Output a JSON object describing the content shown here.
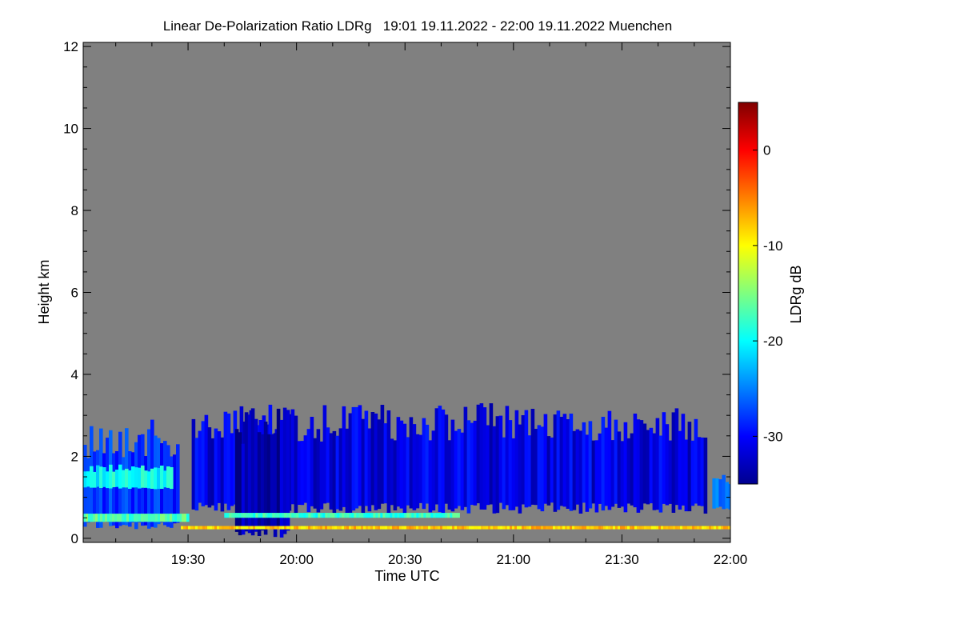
{
  "chart_data": {
    "type": "heatmap",
    "title": "Linear De-Polarization Ratio LDRg   19:01 19.11.2022 - 22:00 19.11.2022 Muenchen",
    "xlabel": "Time UTC",
    "ylabel": "Height km",
    "x_range_minutes": [
      1141,
      1320
    ],
    "y_range_km": [
      -0.1,
      12.1
    ],
    "x_ticks": [
      {
        "minutes": 1170,
        "label": "19:30"
      },
      {
        "minutes": 1200,
        "label": "20:00"
      },
      {
        "minutes": 1230,
        "label": "20:30"
      },
      {
        "minutes": 1260,
        "label": "21:00"
      },
      {
        "minutes": 1290,
        "label": "21:30"
      },
      {
        "minutes": 1320,
        "label": "22:00"
      }
    ],
    "y_ticks": [
      {
        "value": 0,
        "label": "0"
      },
      {
        "value": 2,
        "label": "2"
      },
      {
        "value": 4,
        "label": "4"
      },
      {
        "value": 6,
        "label": "6"
      },
      {
        "value": 8,
        "label": "8"
      },
      {
        "value": 10,
        "label": "10"
      },
      {
        "value": 12,
        "label": "12"
      }
    ],
    "colorbar": {
      "label": "LDRg dB",
      "range": [
        -35,
        5
      ],
      "ticks": [
        {
          "value": 0,
          "label": "0"
        },
        {
          "value": -10,
          "label": "-10"
        },
        {
          "value": -20,
          "label": "-20"
        },
        {
          "value": -30,
          "label": "-30"
        }
      ],
      "colormap": "jet"
    },
    "no_data_color": "#808080",
    "features": [
      {
        "name": "low-level cloud/aerosol layer",
        "t_start": 1141,
        "t_end": 1167,
        "h_min_km": 0.2,
        "h_max_km": 2.9,
        "ldr_db": -28
      },
      {
        "name": "depolarizing layer (cyan)",
        "t_start": 1141,
        "t_end": 1165,
        "h_min_km": 1.2,
        "h_max_km": 1.8,
        "ldr_db": -20
      },
      {
        "name": "bright near-surface band",
        "t_start": 1141,
        "t_end": 1170,
        "h_min_km": 0.4,
        "h_max_km": 0.6,
        "ldr_db": -17
      },
      {
        "name": "ice virga streaks",
        "t_start": 1171,
        "t_end": 1313,
        "h_min_km": 0.6,
        "h_max_km": 3.3,
        "ldr_db": -31
      },
      {
        "name": "dense precipitation column",
        "t_start": 1183,
        "t_end": 1198,
        "h_min_km": 0.0,
        "h_max_km": 3.2,
        "ldr_db": -33
      },
      {
        "name": "orange surface line",
        "t_start": 1168,
        "t_end": 1320,
        "h_min_km": 0.22,
        "h_max_km": 0.3,
        "ldr_db": -8
      },
      {
        "name": "cyan melting-layer line",
        "t_start": 1180,
        "t_end": 1245,
        "h_min_km": 0.5,
        "h_max_km": 0.62,
        "ldr_db": -18
      },
      {
        "name": "late low cloud patch",
        "t_start": 1315,
        "t_end": 1320,
        "h_min_km": 0.7,
        "h_max_km": 1.6,
        "ldr_db": -26
      }
    ]
  }
}
